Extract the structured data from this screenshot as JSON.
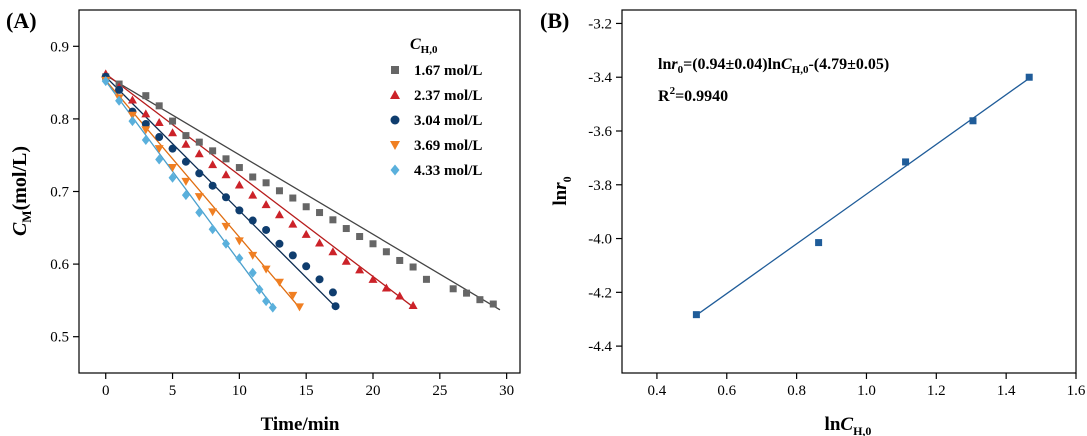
{
  "chart_data": [
    {
      "panel_label": "(A)",
      "type": "scatter",
      "xlabel": "Time/min",
      "ylabel": {
        "main": "C",
        "sub": "M",
        "rest": "(mol/L)"
      },
      "xlim": [
        -2,
        31
      ],
      "ylim": [
        0.45,
        0.95
      ],
      "x_ticks": [
        0,
        5,
        10,
        15,
        20,
        25,
        30
      ],
      "y_ticks": [
        0.5,
        0.6,
        0.7,
        0.8,
        0.9
      ],
      "legend": {
        "title_main": "C",
        "title_sub": "H,0",
        "placement": "top-right"
      },
      "series": [
        {
          "name": "1.67 mol/L",
          "marker": "square",
          "color": "#666666",
          "fit_color": "#444444",
          "points": [
            [
              0,
              0.858
            ],
            [
              1,
              0.848
            ],
            [
              3,
              0.832
            ],
            [
              4,
              0.818
            ],
            [
              5,
              0.797
            ],
            [
              6,
              0.777
            ],
            [
              7,
              0.768
            ],
            [
              8,
              0.756
            ],
            [
              9,
              0.745
            ],
            [
              10,
              0.733
            ],
            [
              11,
              0.72
            ],
            [
              12,
              0.712
            ],
            [
              13,
              0.701
            ],
            [
              14,
              0.691
            ],
            [
              15,
              0.679
            ],
            [
              16,
              0.671
            ],
            [
              17,
              0.661
            ],
            [
              18,
              0.649
            ],
            [
              19,
              0.638
            ],
            [
              20,
              0.628
            ],
            [
              21,
              0.617
            ],
            [
              22,
              0.605
            ],
            [
              23,
              0.596
            ],
            [
              24,
              0.579
            ],
            [
              26,
              0.566
            ],
            [
              27,
              0.56
            ],
            [
              28,
              0.551
            ],
            [
              29,
              0.545
            ]
          ],
          "fit": [
            [
              0,
              0.86
            ],
            [
              29.5,
              0.537
            ]
          ]
        },
        {
          "name": "2.37 mol/L",
          "marker": "triangle-up",
          "color": "#cc2229",
          "fit_color": "#b71c1c",
          "points": [
            [
              0,
              0.862
            ],
            [
              1,
              0.844
            ],
            [
              2,
              0.826
            ],
            [
              3,
              0.807
            ],
            [
              4,
              0.795
            ],
            [
              5,
              0.781
            ],
            [
              6,
              0.765
            ],
            [
              7,
              0.752
            ],
            [
              8,
              0.737
            ],
            [
              9,
              0.723
            ],
            [
              10,
              0.709
            ],
            [
              11,
              0.695
            ],
            [
              12,
              0.682
            ],
            [
              13,
              0.668
            ],
            [
              14,
              0.655
            ],
            [
              15,
              0.641
            ],
            [
              16,
              0.629
            ],
            [
              17,
              0.617
            ],
            [
              18,
              0.604
            ],
            [
              19,
              0.592
            ],
            [
              20,
              0.579
            ],
            [
              21,
              0.567
            ],
            [
              22,
              0.556
            ],
            [
              23,
              0.543
            ]
          ],
          "fit": [
            [
              0,
              0.862
            ],
            [
              23,
              0.541
            ]
          ]
        },
        {
          "name": "3.04 mol/L",
          "marker": "circle",
          "color": "#0f3d6e",
          "fit_color": "#0a2a50",
          "points": [
            [
              0,
              0.858
            ],
            [
              1,
              0.84
            ],
            [
              2,
              0.81
            ],
            [
              3,
              0.793
            ],
            [
              4,
              0.775
            ],
            [
              5,
              0.759
            ],
            [
              6,
              0.741
            ],
            [
              7,
              0.725
            ],
            [
              8,
              0.708
            ],
            [
              9,
              0.692
            ],
            [
              10,
              0.674
            ],
            [
              11,
              0.66
            ],
            [
              12,
              0.647
            ],
            [
              13,
              0.628
            ],
            [
              14,
              0.612
            ],
            [
              15,
              0.597
            ],
            [
              16,
              0.579
            ],
            [
              17,
              0.561
            ],
            [
              17.2,
              0.542
            ]
          ],
          "fit": [
            [
              0,
              0.858
            ],
            [
              17.2,
              0.541
            ]
          ]
        },
        {
          "name": "3.69 mol/L",
          "marker": "triangle-down",
          "color": "#f07f22",
          "fit_color": "#e06d10",
          "points": [
            [
              0,
              0.853
            ],
            [
              1,
              0.829
            ],
            [
              2,
              0.805
            ],
            [
              3,
              0.785
            ],
            [
              4,
              0.759
            ],
            [
              5,
              0.733
            ],
            [
              6,
              0.714
            ],
            [
              7,
              0.693
            ],
            [
              8,
              0.672
            ],
            [
              9,
              0.652
            ],
            [
              10,
              0.632
            ],
            [
              11,
              0.612
            ],
            [
              12,
              0.593
            ],
            [
              13,
              0.575
            ],
            [
              14,
              0.557
            ],
            [
              14.5,
              0.541
            ]
          ],
          "fit": [
            [
              0,
              0.853
            ],
            [
              14.5,
              0.54
            ]
          ]
        },
        {
          "name": "4.33 mol/L",
          "marker": "diamond",
          "color": "#5ab0dc",
          "fit_color": "#4a9fcc",
          "points": [
            [
              0,
              0.852
            ],
            [
              1,
              0.825
            ],
            [
              2,
              0.797
            ],
            [
              3,
              0.771
            ],
            [
              4,
              0.744
            ],
            [
              5,
              0.719
            ],
            [
              6,
              0.695
            ],
            [
              7,
              0.671
            ],
            [
              8,
              0.648
            ],
            [
              9,
              0.628
            ],
            [
              10,
              0.608
            ],
            [
              11,
              0.588
            ],
            [
              11.5,
              0.565
            ],
            [
              12,
              0.549
            ],
            [
              12.5,
              0.54
            ]
          ],
          "fit": [
            [
              0,
              0.852
            ],
            [
              12.6,
              0.539
            ]
          ]
        }
      ]
    },
    {
      "panel_label": "(B)",
      "type": "scatter",
      "xlabel": {
        "pre": "ln",
        "main": "C",
        "sub": "H,0"
      },
      "ylabel": {
        "pre": "ln",
        "main": "r",
        "sub": "0"
      },
      "xlim": [
        0.3,
        1.6
      ],
      "ylim": [
        -4.5,
        -3.15
      ],
      "x_ticks": [
        0.4,
        0.6,
        0.8,
        1.0,
        1.2,
        1.4,
        1.6
      ],
      "y_ticks": [
        -4.4,
        -4.2,
        -4.0,
        -3.8,
        -3.6,
        -3.4,
        -3.2
      ],
      "tick_format": {
        "x_decimals": 1,
        "y_decimals": 1
      },
      "series": [
        {
          "marker": "square",
          "color": "#1f5c99",
          "points": [
            [
              0.513,
              -4.283
            ],
            [
              0.863,
              -4.015
            ],
            [
              1.112,
              -3.715
            ],
            [
              1.305,
              -3.562
            ],
            [
              1.466,
              -3.4
            ]
          ],
          "fit": [
            [
              0.513,
              -4.285
            ],
            [
              1.466,
              -3.404
            ]
          ]
        }
      ],
      "annotations": {
        "equation": {
          "a": "ln",
          "b": "r",
          "c": "0",
          "d": "=(0.94±0.04)ln",
          "e": "C",
          "f": "H,0",
          "g": "-(4.79±0.05)"
        },
        "r2": {
          "a": "R",
          "b": "2",
          "c": "=0.9940"
        }
      }
    }
  ]
}
